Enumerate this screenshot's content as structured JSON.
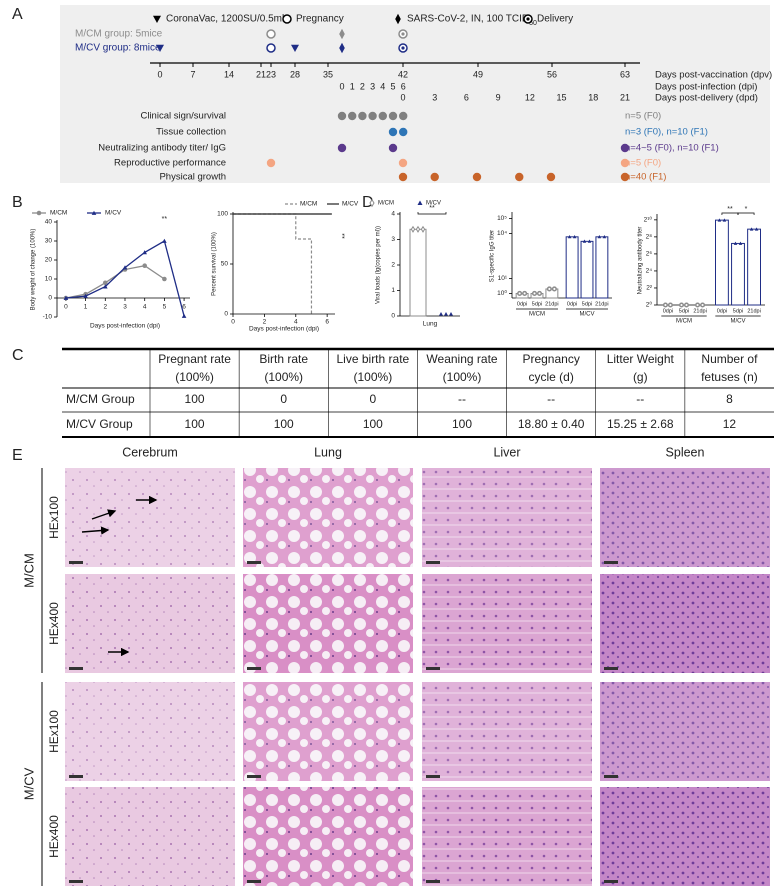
{
  "panel_labels": [
    "A",
    "B",
    "C",
    "D",
    "E"
  ],
  "panelA": {
    "legend": [
      {
        "symbol": "triangle",
        "label": "CoronaVac, 1200SU/0.5ml"
      },
      {
        "symbol": "circle",
        "label": "Pregnancy"
      },
      {
        "symbol": "diamond",
        "label": "SARS-CoV-2, IN, 100 TCID",
        "sub": "50"
      },
      {
        "symbol": "dot-circle",
        "label": "Delivery"
      }
    ],
    "groups": [
      {
        "label": "M/CM group: 5mice",
        "color": "#8c8c8c",
        "events": [
          {
            "symbol": "circle",
            "scale": "dpv",
            "day": 23
          },
          {
            "symbol": "diamond",
            "scale": "dpi",
            "day": 0
          },
          {
            "symbol": "dot-circle",
            "scale": "dpd",
            "day": 0
          }
        ]
      },
      {
        "label": "M/CV group: 8mice",
        "color": "#1f2d86",
        "events": [
          {
            "symbol": "triangle",
            "scale": "dpv",
            "day": 0
          },
          {
            "symbol": "circle",
            "scale": "dpv",
            "day": 23
          },
          {
            "symbol": "triangle",
            "scale": "dpv",
            "day": 28
          },
          {
            "symbol": "diamond",
            "scale": "dpi",
            "day": 0
          },
          {
            "symbol": "dot-circle",
            "scale": "dpd",
            "day": 0
          }
        ]
      }
    ],
    "dpv_ticks": [
      0,
      7,
      14,
      21,
      23,
      28,
      35,
      42,
      49,
      56,
      63
    ],
    "dpi_ticks": [
      0,
      1,
      2,
      3,
      4,
      5,
      6
    ],
    "dpd_ticks": [
      0,
      3,
      6,
      9,
      12,
      15,
      18,
      21
    ],
    "axis_labels": [
      "Days post-vaccination (dpv)",
      "Days post-infection (dpi)",
      "Days post-delivery (dpd)"
    ],
    "rows": [
      {
        "label": "Clinical sign/survival",
        "note": "n=5 (F0)",
        "color": "#808080",
        "dots": [
          {
            "scale": "dpi",
            "day": 0
          },
          {
            "scale": "dpi",
            "day": 1
          },
          {
            "scale": "dpi",
            "day": 2
          },
          {
            "scale": "dpi",
            "day": 3
          },
          {
            "scale": "dpi",
            "day": 4
          },
          {
            "scale": "dpi",
            "day": 5
          },
          {
            "scale": "dpi",
            "day": 6
          }
        ]
      },
      {
        "label": "Tissue collection",
        "note": "n=3 (F0), n=10 (F1)",
        "color": "#2e75b6",
        "dots": [
          {
            "scale": "dpi",
            "day": 5
          },
          {
            "scale": "dpi",
            "day": 6
          }
        ]
      },
      {
        "label": "Neutralizing antibody titer/ IgG",
        "note": "n=4~5 (F0), n=10 (F1)",
        "color": "#5b3a8c",
        "dots": [
          {
            "scale": "dpi",
            "day": 0
          },
          {
            "scale": "dpi",
            "day": 5
          },
          {
            "scale": "dpd",
            "day": 21
          }
        ]
      },
      {
        "label": "Reproductive performance",
        "note": "n=5 (F0)",
        "color": "#f4a582",
        "dots": [
          {
            "scale": "dpv",
            "day": 23
          },
          {
            "scale": "dpd",
            "day": 0
          },
          {
            "scale": "dpd",
            "day": 21
          }
        ]
      },
      {
        "label": "Physical growth",
        "note": "n=40 (F1)",
        "color": "#c8642a",
        "dots": [
          {
            "scale": "dpd",
            "day": 0
          },
          {
            "scale": "dpd",
            "day": 3
          },
          {
            "scale": "dpd",
            "day": 7
          },
          {
            "scale": "dpd",
            "day": 11
          },
          {
            "scale": "dpd",
            "day": 14
          },
          {
            "scale": "dpd",
            "day": 21
          }
        ]
      }
    ]
  },
  "panelB": {
    "weight": {
      "type": "line",
      "y_label": "Body weight of change (100%)",
      "x_label": "Days post-infection (dpi)",
      "x": [
        0,
        1,
        2,
        3,
        4,
        5,
        6
      ],
      "xlim": [
        -0.3,
        6.3
      ],
      "xticks": [
        0,
        1,
        2,
        3,
        4,
        5,
        6
      ],
      "ylim": [
        -10,
        40
      ],
      "yticks": [
        -10,
        0,
        10,
        20,
        30,
        40
      ],
      "series": [
        {
          "name": "M/CM",
          "color": "#8c8c8c",
          "marker": "circle-filled",
          "values": [
            0,
            2,
            8,
            15,
            17,
            10,
            null
          ]
        },
        {
          "name": "M/CV",
          "color": "#1f2d86",
          "marker": "triangle-up",
          "values": [
            0,
            1,
            6,
            16,
            24,
            30,
            -9.5
          ]
        }
      ],
      "annotation": "**"
    },
    "survival": {
      "type": "step",
      "y_label": "Percent survival (100%)",
      "x_label": "Days post-infection (dpi)",
      "xlim": [
        0,
        6.5
      ],
      "xticks": [
        0,
        2,
        4,
        6
      ],
      "ylim": [
        0,
        100
      ],
      "yticks": [
        0,
        50,
        100
      ],
      "series": [
        {
          "name": "M/CM",
          "color": "#8c8c8c",
          "dash": true,
          "x": [
            0,
            4,
            4,
            5,
            5
          ],
          "values": [
            100,
            100,
            75,
            75,
            0
          ]
        },
        {
          "name": "M/CV",
          "color": "#222222",
          "dash": false,
          "x": [
            0,
            6.3
          ],
          "values": [
            100,
            100
          ]
        }
      ],
      "annotation": "**"
    }
  },
  "panelC": {
    "columns": [
      [
        "Pregnant rate",
        "(100%)"
      ],
      [
        "Birth rate",
        "(100%)"
      ],
      [
        "Live birth rate",
        "(100%)"
      ],
      [
        "Weaning rate",
        "(100%)"
      ],
      [
        "Pregnancy",
        "cycle (d)"
      ],
      [
        "Litter Weight",
        "(g)"
      ],
      [
        "Number of",
        "fetuses (n)"
      ]
    ],
    "rows": [
      [
        "M/CM Group",
        "100",
        "0",
        "0",
        "--",
        "--",
        "--",
        "8"
      ],
      [
        "M/CV Group",
        "100",
        "100",
        "100",
        "100",
        "18.80 ± 0.40",
        "15.25 ± 2.68",
        "12"
      ]
    ]
  },
  "panelD": {
    "viral": {
      "type": "bar",
      "y_label": "Viral loads (lg(copies per ml))",
      "categories": [
        "Lung"
      ],
      "ylim": [
        0,
        4
      ],
      "yticks": [
        0,
        1,
        2,
        3,
        4
      ],
      "series": [
        {
          "name": "M/CM",
          "marker": "diamond-open",
          "color": "#8c8c8c",
          "values": [
            3.4
          ]
        },
        {
          "name": "M/CV",
          "marker": "triangle-up",
          "color": "#1f2d86",
          "values": [
            0
          ]
        }
      ],
      "annotation": "**"
    },
    "igg": {
      "type": "bar",
      "y_label": "S1-specific IgG titer",
      "log": true,
      "categories": [
        "0dpi",
        "5dpi",
        "21dpi"
      ],
      "ylim": [
        0.5,
        200000
      ],
      "yticks": [
        {
          "value": 1,
          "label": "10⁰"
        },
        {
          "value": 10,
          "label": "10¹"
        },
        {
          "value": 10000,
          "label": "10⁴"
        },
        {
          "value": 100000,
          "label": "10⁵"
        }
      ],
      "series": [
        {
          "name": "M/CM",
          "color": "#8c8c8c",
          "marker": "circle",
          "values": [
            1,
            1,
            2
          ]
        },
        {
          "name": "M/CV",
          "color": "#1f2d86",
          "marker": "triangle-up",
          "values": [
            6000,
            3000,
            6000
          ]
        }
      ]
    },
    "neut": {
      "type": "bar",
      "y_label": "Neutralizing antibody titer",
      "log": true,
      "categories": [
        "0dpi",
        "5dpi",
        "21dpi"
      ],
      "ylim": [
        1,
        1400
      ],
      "yticks": [
        {
          "value": 1,
          "label": "2⁰"
        },
        {
          "value": 4,
          "label": "2²"
        },
        {
          "value": 16,
          "label": "2⁴"
        },
        {
          "value": 64,
          "label": "2⁶"
        },
        {
          "value": 256,
          "label": "2⁸"
        },
        {
          "value": 1024,
          "label": "2¹⁰"
        }
      ],
      "series": [
        {
          "name": "M/CM",
          "color": "#8c8c8c",
          "marker": "circle",
          "values": [
            1,
            1,
            1
          ]
        },
        {
          "name": "M/CV",
          "color": "#1f2d86",
          "marker": "triangle-up",
          "values": [
            1000,
            150,
            480
          ]
        }
      ],
      "annotations": [
        "**",
        "*"
      ]
    }
  },
  "panelE": {
    "columns": [
      "Cerebrum",
      "Lung",
      "Liver",
      "Spleen"
    ],
    "groups": [
      {
        "label": "M/CM",
        "rows": [
          "HEx100",
          "HEx400"
        ]
      },
      {
        "label": "M/CV",
        "rows": [
          "HEx100",
          "HEx400"
        ]
      }
    ]
  }
}
